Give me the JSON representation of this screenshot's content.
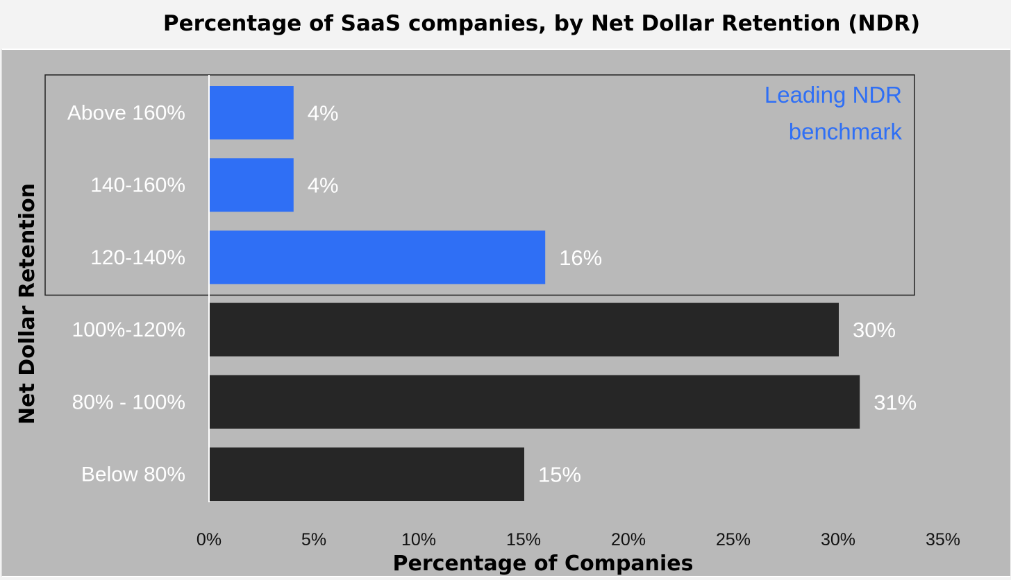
{
  "chart_data": {
    "type": "bar",
    "orientation": "horizontal",
    "title": "Percentage of SaaS companies, by Net Dollar Retention (NDR)",
    "xlabel": "Percentage of Companies",
    "ylabel": "Net Dollar Retention",
    "categories": [
      "Above 160%",
      "140-160%",
      "120-140%",
      "100%-120%",
      "80% - 100%",
      "Below 80%"
    ],
    "values": [
      4,
      4,
      16,
      30,
      31,
      15
    ],
    "value_labels": [
      "4%",
      "4%",
      "16%",
      "30%",
      "31%",
      "15%"
    ],
    "highlighted_categories": [
      "Above 160%",
      "140-160%",
      "120-140%"
    ],
    "xlim": [
      0,
      35
    ],
    "x_ticks": [
      "0%",
      "5%",
      "10%",
      "15%",
      "20%",
      "25%",
      "30%",
      "35%"
    ],
    "grid": false,
    "annotation": {
      "lines": [
        "Leading NDR",
        "benchmark"
      ],
      "color": "#2f6ff5"
    },
    "colors": {
      "highlight": "#2f6ff5",
      "default": "#262626",
      "background": "#b9b9b9"
    }
  }
}
